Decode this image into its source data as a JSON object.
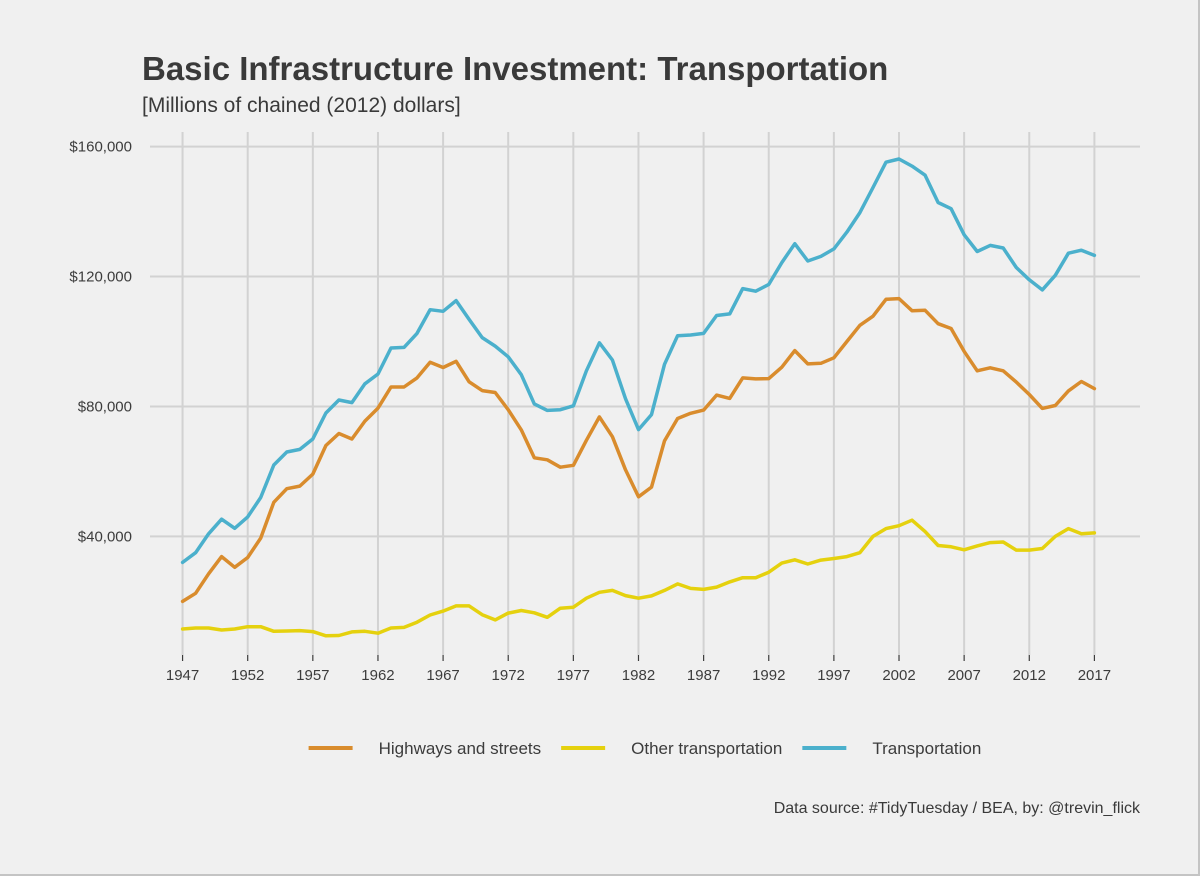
{
  "chart_data": {
    "type": "line",
    "title": "Basic Infrastructure Investment: Transportation",
    "subtitle": "[Millions of chained (2012) dollars]",
    "caption": "Data source: #TidyTuesday / BEA, by: @trevin_flick",
    "xlabel": "",
    "ylabel": "",
    "xlim": [
      1944.5,
      2020.5
    ],
    "ylim": [
      3500,
      164500
    ],
    "x_ticks": [
      1947,
      1952,
      1957,
      1962,
      1967,
      1972,
      1977,
      1982,
      1987,
      1992,
      1997,
      2002,
      2007,
      2012,
      2017
    ],
    "x_tick_labels": [
      "1947",
      "1952",
      "1957",
      "1962",
      "1967",
      "1972",
      "1977",
      "1982",
      "1987",
      "1992",
      "1997",
      "2002",
      "2007",
      "2012",
      "2017"
    ],
    "y_ticks": [
      40000,
      80000,
      120000,
      160000
    ],
    "y_tick_labels": [
      "$40,000",
      "$80,000",
      "$120,000",
      "$160,000"
    ],
    "grid": true,
    "legend_position": "bottom",
    "x": [
      1947,
      1948,
      1949,
      1950,
      1951,
      1952,
      1953,
      1954,
      1955,
      1956,
      1957,
      1958,
      1959,
      1960,
      1961,
      1962,
      1963,
      1964,
      1965,
      1966,
      1967,
      1968,
      1969,
      1970,
      1971,
      1972,
      1973,
      1974,
      1975,
      1976,
      1977,
      1978,
      1979,
      1980,
      1981,
      1982,
      1983,
      1984,
      1985,
      1986,
      1987,
      1988,
      1989,
      1990,
      1991,
      1992,
      1993,
      1994,
      1995,
      1996,
      1997,
      1998,
      1999,
      2000,
      2001,
      2002,
      2003,
      2004,
      2005,
      2006,
      2007,
      2008,
      2009,
      2010,
      2011,
      2012,
      2013,
      2014,
      2015,
      2016,
      2017
    ],
    "series": [
      {
        "name": "Highways and streets",
        "color": "#d98c2d",
        "values": [
          20000,
          22500,
          28500,
          33800,
          30500,
          33500,
          39500,
          50500,
          54700,
          55500,
          59200,
          68000,
          71700,
          70000,
          75500,
          79500,
          86000,
          86000,
          88800,
          93600,
          92000,
          93900,
          87600,
          84900,
          84300,
          79000,
          72800,
          64200,
          63600,
          61300,
          61900,
          69600,
          76800,
          70700,
          60500,
          52200,
          55200,
          69400,
          76300,
          77900,
          78900,
          83500,
          82500,
          88800,
          88500,
          88600,
          92100,
          97200,
          93100,
          93300,
          95000,
          100000,
          105000,
          107800,
          113000,
          113200,
          109500,
          109600,
          105500,
          104000,
          97000,
          91000,
          91900,
          91000,
          87500,
          83700,
          79400,
          80300,
          84800,
          87700,
          85500
        ]
      },
      {
        "name": "Other transportation",
        "color": "#e5d10e",
        "values": [
          11500,
          11800,
          11800,
          11200,
          11500,
          12200,
          12200,
          10800,
          10900,
          11000,
          10700,
          9400,
          9500,
          10600,
          10800,
          10200,
          11800,
          12000,
          13600,
          15800,
          17000,
          18600,
          18600,
          15900,
          14300,
          16400,
          17200,
          16500,
          15100,
          17900,
          18200,
          21000,
          22800,
          23400,
          21800,
          21000,
          21700,
          23400,
          25400,
          24000,
          23700,
          24400,
          26000,
          27300,
          27300,
          29000,
          31800,
          32800,
          31500,
          32700,
          33200,
          33800,
          35000,
          40000,
          42400,
          43300,
          45000,
          41500,
          37200,
          36800,
          35900,
          37100,
          38100,
          38300,
          35800,
          35800,
          36300,
          40000,
          42400,
          40800,
          41100
        ]
      },
      {
        "name": "Transportation",
        "color": "#4bb0cc",
        "values": [
          32000,
          35000,
          40800,
          45300,
          42500,
          46000,
          52000,
          62000,
          66000,
          66800,
          70000,
          78000,
          82000,
          81200,
          87000,
          90000,
          98000,
          98200,
          102500,
          109800,
          109300,
          112600,
          106800,
          101200,
          98600,
          95300,
          89800,
          80800,
          78800,
          79000,
          80200,
          91000,
          99600,
          94300,
          82400,
          72900,
          77500,
          93000,
          101800,
          102000,
          102500,
          108000,
          108500,
          116300,
          115500,
          117600,
          124300,
          130100,
          124800,
          126200,
          128500,
          133700,
          139700,
          147400,
          155200,
          156200,
          154000,
          151200,
          142800,
          140900,
          132900,
          127700,
          129600,
          128800,
          122800,
          119000,
          115900,
          120400,
          127200,
          128100,
          126500
        ]
      }
    ]
  }
}
